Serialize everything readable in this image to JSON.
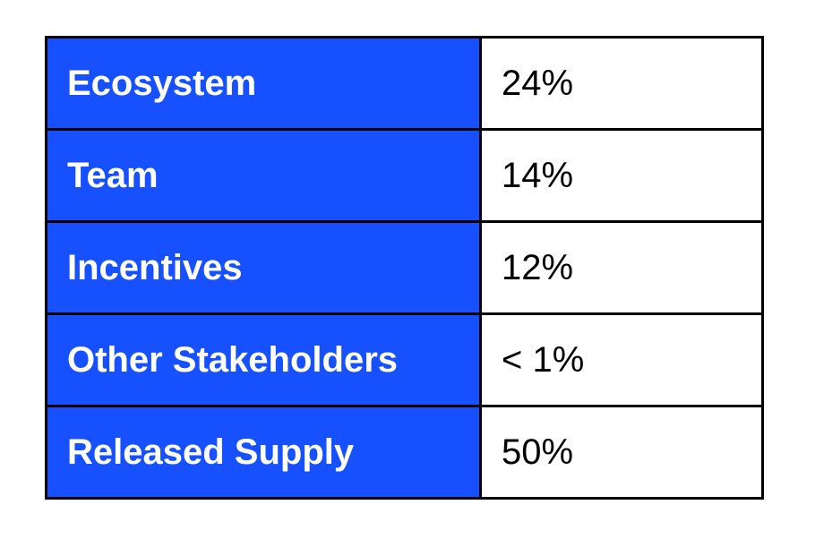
{
  "table": {
    "rows": [
      [
        "Ecosystem",
        "24%"
      ],
      [
        "Team",
        "14%"
      ],
      [
        "Incentives",
        "12%"
      ],
      [
        "Other Stakeholders",
        "< 1%"
      ],
      [
        "Released Supply",
        "50%"
      ]
    ]
  }
}
